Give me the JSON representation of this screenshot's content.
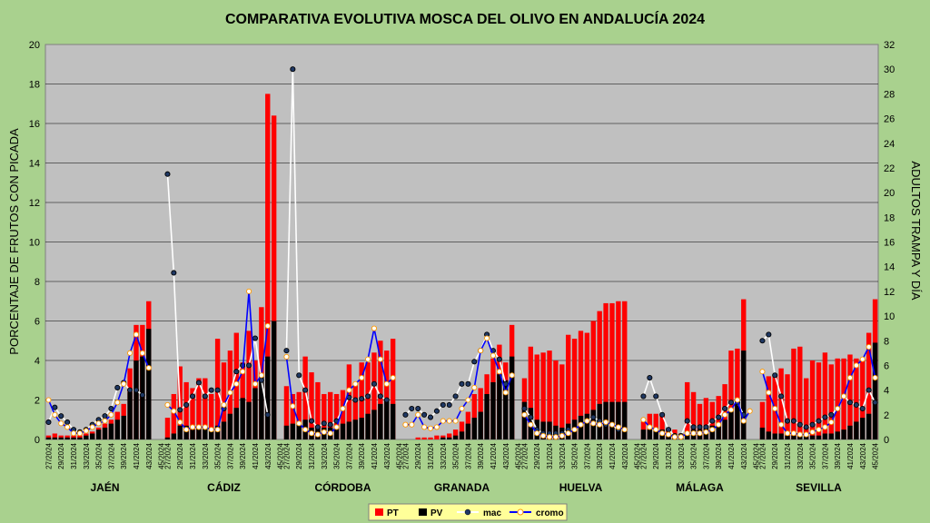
{
  "chart_data": {
    "type": "bar+line",
    "title": "COMPARATIVA EVOLUTIVA MOSCA DEL OLIVO EN ANDALUCÍA 2024",
    "ylabel_left": "PORCENTAJE DE FRUTOS CON PICADA",
    "ylabel_right": "ADULTOS TRAMPA Y DÍA",
    "ylim_left": [
      0,
      20
    ],
    "ylim_right": [
      0,
      32
    ],
    "yticks_left": [
      "0",
      "2",
      "4",
      "6",
      "8",
      "10",
      "12",
      "14",
      "16",
      "18",
      "20"
    ],
    "yticks_right": [
      "0",
      "2",
      "4",
      "6",
      "8",
      "10",
      "12",
      "14",
      "16",
      "18",
      "20",
      "22",
      "24",
      "26",
      "28",
      "30",
      "32"
    ],
    "week_labels": [
      "27/2024",
      "29/2024",
      "31/2024",
      "33/2024",
      "35/2024",
      "37/2024",
      "39/2024",
      "41/2024",
      "43/2024",
      "45/2024"
    ],
    "weeks": [
      27,
      28,
      29,
      30,
      31,
      32,
      33,
      34,
      35,
      36,
      37,
      38,
      39,
      40,
      41,
      42,
      43,
      44,
      45
    ],
    "legend": {
      "pt": "PT",
      "pv": "PV",
      "mac": "mac",
      "cromo": "cromo"
    },
    "colors": {
      "pt": "#ff0000",
      "pv": "#000000",
      "mac": "#ffffff",
      "cromo": "#0000ff",
      "plot_bg": "#c0c0c0",
      "background": "#a9d18e"
    },
    "provinces": [
      {
        "name": "JAÉN",
        "pt": [
          0.2,
          0.3,
          0.2,
          0.2,
          0.2,
          0.2,
          0.3,
          0.4,
          0.6,
          0.8,
          1.0,
          1.4,
          1.8,
          3.6,
          5.8,
          5.8,
          7.0,
          null,
          null
        ],
        "pv": [
          0.1,
          0.1,
          0.1,
          0.1,
          0.1,
          0.1,
          0.2,
          0.3,
          0.5,
          0.6,
          0.8,
          1.0,
          1.2,
          2.4,
          4.0,
          4.2,
          5.6,
          null,
          null
        ],
        "mac": [
          1.4,
          2.6,
          1.9,
          1.4,
          0.8,
          0.6,
          0.8,
          1.2,
          1.6,
          1.9,
          2.5,
          4.2,
          4.6,
          4.0,
          4.0,
          3.6,
          null,
          null,
          null
        ],
        "cromo": [
          3.2,
          2.0,
          1.3,
          1.0,
          0.5,
          0.5,
          0.7,
          1.0,
          1.3,
          1.5,
          2.0,
          3.0,
          4.5,
          7.0,
          8.5,
          7.0,
          5.8,
          null,
          null
        ]
      },
      {
        "name": "CÁDIZ",
        "pt": [
          1.1,
          2.3,
          3.7,
          2.9,
          2.6,
          3.1,
          3.1,
          2.3,
          5.1,
          3.9,
          4.5,
          5.4,
          3.9,
          5.5,
          4.0,
          6.7,
          17.5,
          16.4,
          null
        ],
        "pv": [
          0.1,
          0.3,
          0.7,
          0.7,
          0.5,
          0.7,
          0.6,
          0.6,
          0.7,
          0.9,
          1.3,
          1.6,
          2.1,
          1.9,
          2.6,
          3.2,
          4.2,
          6.0,
          null
        ],
        "mac": [
          21.5,
          13.5,
          2.4,
          2.8,
          3.5,
          4.6,
          3.5,
          4.0,
          4.0,
          2.5,
          3.8,
          5.5,
          6.0,
          6.0,
          8.2,
          4.8,
          2.0,
          null,
          null
        ],
        "cromo": [
          2.8,
          2.3,
          1.4,
          0.8,
          1.0,
          1.0,
          1.0,
          0.8,
          0.8,
          2.8,
          3.8,
          4.5,
          5.5,
          12.0,
          4.5,
          5.2,
          9.2,
          null,
          null
        ]
      },
      {
        "name": "CÓRDOBA",
        "pt": [
          2.7,
          2.3,
          2.4,
          4.2,
          3.4,
          2.9,
          2.3,
          2.4,
          2.3,
          2.5,
          3.8,
          2.8,
          3.9,
          3.9,
          4.4,
          5.0,
          4.5,
          5.1,
          null
        ],
        "pv": [
          0.7,
          0.8,
          0.8,
          1.0,
          0.6,
          0.6,
          0.6,
          0.6,
          0.7,
          0.8,
          0.9,
          1.0,
          1.1,
          1.3,
          1.5,
          1.8,
          2.0,
          1.8,
          null
        ],
        "mac": [
          7.2,
          30.0,
          5.2,
          4.0,
          1.5,
          1.0,
          1.3,
          1.2,
          1.5,
          2.5,
          3.4,
          3.2,
          3.3,
          3.5,
          4.5,
          3.5,
          3.2,
          null,
          null
        ],
        "cromo": [
          6.7,
          2.7,
          1.3,
          0.8,
          0.5,
          0.4,
          0.6,
          0.5,
          1.0,
          2.5,
          4.0,
          4.5,
          5.0,
          6.5,
          9.0,
          6.5,
          4.5,
          5.0,
          null
        ]
      },
      {
        "name": "GRANADA",
        "pt": [
          0.0,
          0.0,
          0.1,
          0.1,
          0.1,
          0.2,
          0.2,
          0.3,
          0.5,
          0.9,
          1.4,
          2.3,
          2.6,
          3.3,
          4.1,
          4.8,
          3.9,
          5.8,
          null
        ],
        "pv": [
          0.0,
          0.0,
          0.0,
          0.0,
          0.0,
          0.0,
          0.1,
          0.1,
          0.2,
          0.4,
          0.8,
          1.1,
          1.4,
          2.3,
          2.9,
          3.3,
          3.0,
          4.2,
          null
        ],
        "mac": [
          2.0,
          2.5,
          2.5,
          2.0,
          1.8,
          2.3,
          2.8,
          2.8,
          3.5,
          4.5,
          4.5,
          6.3,
          7.2,
          8.5,
          7.2,
          6.5,
          4.5,
          null,
          null
        ],
        "cromo": [
          1.2,
          1.2,
          2.0,
          1.0,
          0.9,
          1.0,
          1.5,
          1.5,
          1.5,
          2.5,
          3.2,
          4.2,
          7.2,
          8.2,
          6.8,
          5.5,
          3.8,
          5.2,
          null
        ]
      },
      {
        "name": "HUELVA",
        "pt": [
          3.1,
          4.7,
          4.3,
          4.4,
          4.5,
          4.0,
          3.8,
          5.3,
          5.1,
          5.5,
          5.4,
          6.0,
          6.5,
          6.9,
          6.9,
          7.0,
          7.0,
          null,
          null
        ],
        "pv": [
          1.9,
          1.6,
          1.0,
          0.9,
          0.9,
          0.7,
          0.6,
          0.8,
          1.0,
          1.2,
          1.3,
          1.5,
          1.8,
          1.9,
          1.9,
          1.9,
          1.9,
          null,
          null
        ],
        "mac": [
          2.5,
          1.8,
          0.8,
          0.5,
          0.5,
          0.5,
          0.5,
          0.8,
          0.8,
          1.2,
          1.5,
          1.8,
          1.5,
          1.2,
          1.2,
          0.8,
          0.8,
          null,
          null
        ],
        "cromo": [
          2.0,
          1.2,
          0.5,
          0.3,
          0.2,
          0.2,
          0.3,
          0.5,
          0.8,
          1.2,
          1.5,
          1.3,
          1.2,
          1.4,
          1.2,
          1.0,
          0.8,
          null,
          null
        ]
      },
      {
        "name": "MÁLAGA",
        "pt": [
          0.9,
          1.3,
          1.3,
          1.2,
          0.5,
          0.5,
          0.3,
          2.9,
          2.4,
          1.8,
          2.1,
          1.9,
          2.2,
          2.8,
          4.5,
          4.6,
          7.1,
          null,
          null
        ],
        "pv": [
          0.5,
          0.5,
          0.6,
          0.5,
          0.2,
          0.2,
          0.2,
          0.4,
          0.5,
          0.5,
          0.6,
          0.7,
          0.8,
          1.0,
          1.6,
          1.8,
          4.5,
          null,
          null
        ],
        "mac": [
          3.5,
          5.0,
          3.5,
          2.0,
          0.8,
          0.3,
          0.3,
          1.5,
          1.0,
          1.0,
          1.0,
          1.5,
          1.8,
          2.5,
          3.0,
          3.0,
          2.0,
          null,
          null
        ],
        "cromo": [
          1.6,
          1.0,
          0.8,
          0.5,
          0.4,
          0.2,
          0.2,
          0.5,
          0.5,
          0.5,
          0.6,
          0.8,
          1.2,
          2.0,
          2.4,
          3.2,
          1.5,
          2.3,
          null
        ]
      },
      {
        "name": "SEVILLA",
        "pt": [
          1.9,
          3.2,
          3.3,
          3.6,
          3.3,
          4.6,
          4.7,
          3.1,
          4.0,
          3.9,
          4.4,
          3.8,
          4.1,
          4.1,
          4.3,
          4.1,
          4.0,
          5.4,
          7.1
        ],
        "pv": [
          0.6,
          0.4,
          0.3,
          0.3,
          0.2,
          0.2,
          0.2,
          0.2,
          0.2,
          0.2,
          0.3,
          0.3,
          0.4,
          0.5,
          0.7,
          0.9,
          1.1,
          1.3,
          4.9
        ],
        "mac": [
          8.0,
          8.5,
          5.2,
          3.5,
          1.5,
          1.5,
          1.2,
          1.0,
          1.2,
          1.5,
          1.8,
          2.0,
          2.5,
          3.5,
          3.0,
          2.8,
          2.5,
          4.0,
          3.0
        ],
        "cromo": [
          5.5,
          3.8,
          2.5,
          1.2,
          0.5,
          0.5,
          0.4,
          0.4,
          0.6,
          0.8,
          1.0,
          1.4,
          2.5,
          3.5,
          5.0,
          6.0,
          6.5,
          7.5,
          5.0
        ]
      }
    ]
  }
}
